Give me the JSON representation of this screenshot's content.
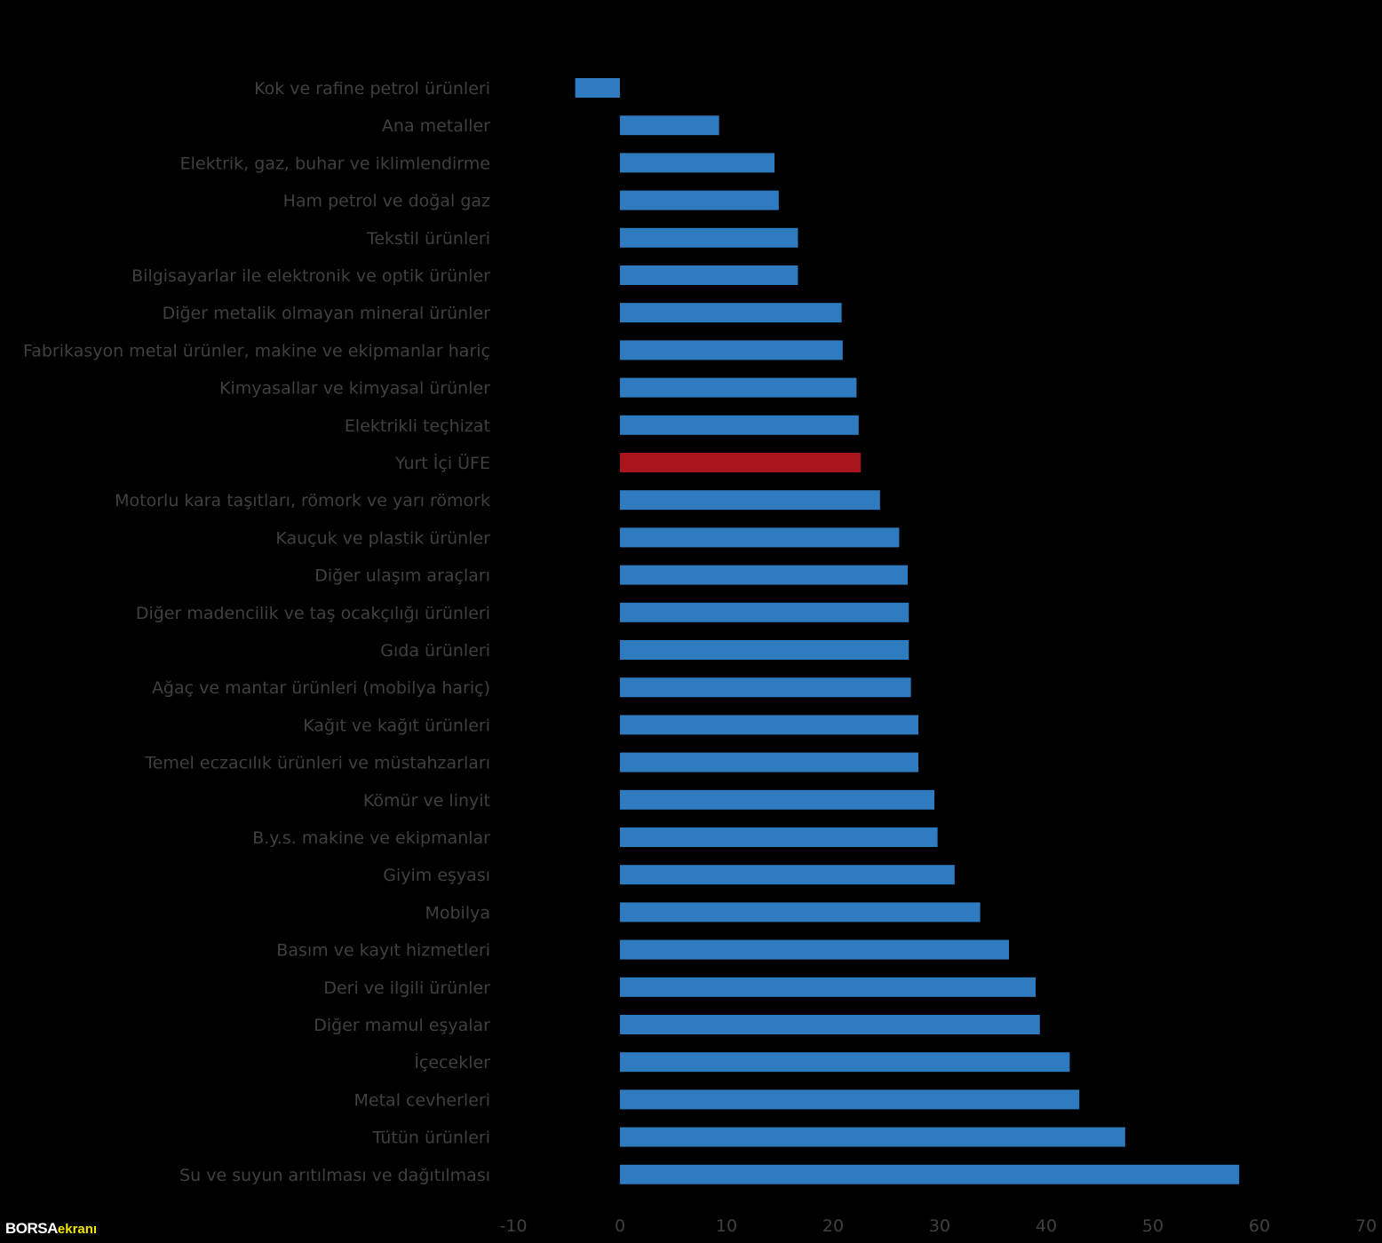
{
  "chart_data": {
    "type": "bar",
    "orientation": "horizontal",
    "categories": [
      "Kok ve rafine petrol ürünleri",
      "Ana metaller",
      "Elektrik, gaz, buhar ve iklimlendirme",
      "Ham petrol ve doğal gaz",
      "Tekstil ürünleri",
      "Bilgisayarlar ile elektronik ve optik ürünler",
      "Diğer metalik olmayan mineral ürünler",
      "Fabrikasyon metal ürünler, makine ve ekipmanlar hariç",
      "Kimyasallar ve kimyasal ürünler",
      "Elektrikli teçhizat",
      "Yurt İçi ÜFE",
      "Motorlu kara taşıtları, römork ve yarı römork",
      "Kauçuk ve plastik ürünler",
      "Diğer ulaşım araçları",
      "Diğer madencilik ve taş ocakçılığı ürünleri",
      "Gıda ürünleri",
      "Ağaç ve mantar ürünleri (mobilya hariç)",
      "Kağıt ve kağıt ürünleri",
      "Temel eczacılık ürünleri ve müstahzarları",
      "Kömür ve linyit",
      "B.y.s. makine ve ekipmanlar",
      "Giyim eşyası",
      "Mobilya",
      "Basım ve kayıt hizmetleri",
      "Deri ve ilgili ürünler",
      "Diğer mamul eşyalar",
      "İçecekler",
      "Metal cevherleri",
      "Tütün ürünleri",
      "Su ve suyun arıtılması ve dağıtılması"
    ],
    "values": [
      -4.2,
      9.3,
      14.5,
      14.9,
      16.7,
      16.7,
      20.8,
      20.9,
      22.2,
      22.4,
      22.6,
      24.4,
      26.2,
      27.0,
      27.1,
      27.1,
      27.3,
      28.0,
      28.0,
      29.5,
      29.8,
      31.4,
      33.8,
      36.5,
      39.0,
      39.4,
      42.2,
      43.1,
      47.4,
      58.1
    ],
    "highlight_category": "Yurt İçi ÜFE",
    "colors": {
      "bar": "#2e7bbf",
      "highlight": "#a8151d",
      "text": "#404040",
      "background": "#000000"
    },
    "xlim": [
      -10,
      70
    ],
    "xticks": [
      "-10",
      "0",
      "10",
      "20",
      "30",
      "40",
      "50",
      "60",
      "70"
    ],
    "grid": false,
    "legend": "none",
    "title": "",
    "xlabel": "",
    "ylabel": ""
  },
  "logo": {
    "word1": "BORSA",
    "word2": "ekranı"
  }
}
